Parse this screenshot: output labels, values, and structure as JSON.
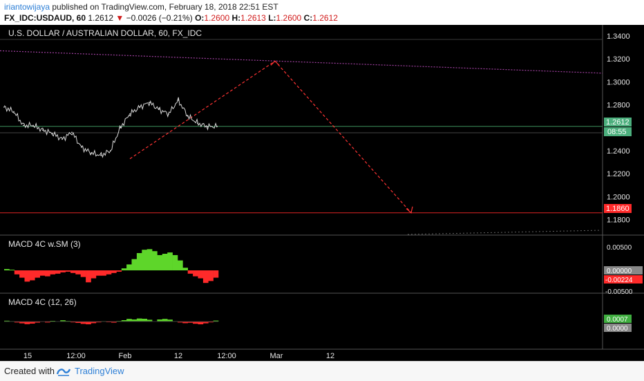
{
  "header": {
    "author": "iriantowijaya",
    "published_text": " published on TradingView.com, February 18, 2018 22:51 EST",
    "symbol": "FX_IDC:USDAUD, 60",
    "last": "1.2612",
    "change_arrow": "▼",
    "change": "−0.0026 (−0.21%)",
    "o_label": "O:",
    "o_val": "1.2600",
    "h_label": "H:",
    "h_val": "1.2613",
    "l_label": "L:",
    "l_val": "1.2600",
    "c_label": "C:",
    "c_val": "1.2612"
  },
  "footer": {
    "created_with": "Created with",
    "brand": "TradingView"
  },
  "colors": {
    "bg": "#000000",
    "price_line": "#d9d9d9",
    "trend": "#ff3333",
    "resistance": "#a040a0",
    "target_line": "#e02424",
    "macd_up": "#5ed62a",
    "macd_down": "#ff2a2a",
    "price_tag": "#4caf7d",
    "target_tag": "#ff2a2a"
  },
  "chart_data": [
    {
      "type": "line",
      "title": "U.S. DOLLAR / AUSTRALIAN DOLLAR, 60, FX_IDC",
      "y_ticks": [
        "1.3400",
        "1.3200",
        "1.3000",
        "1.2800",
        "1.2400",
        "1.2200",
        "1.2000",
        "1.1800"
      ],
      "ylim": [
        1.175,
        1.3435
      ],
      "x_ticks": [
        "15",
        "12:00",
        "Feb",
        "12",
        "12:00",
        "Mar",
        "12"
      ],
      "x": [
        "Jan 11",
        "Jan 13",
        "Jan 15",
        "Jan 17",
        "Jan 19",
        "Jan 21",
        "Jan 23",
        "Jan 25",
        "Jan 27",
        "Jan 29",
        "Jan 31",
        "Feb 2",
        "Feb 4",
        "Feb 6",
        "Feb 8",
        "Feb 10",
        "Feb 12",
        "Feb 13",
        "Feb 14",
        "Feb 15",
        "Feb 16",
        "Feb 17",
        "Feb 18"
      ],
      "close": [
        1.278,
        1.274,
        1.262,
        1.262,
        1.258,
        1.255,
        1.25,
        1.256,
        1.243,
        1.238,
        1.236,
        1.24,
        1.26,
        1.272,
        1.278,
        1.282,
        1.276,
        1.272,
        1.284,
        1.27,
        1.264,
        1.261,
        1.2612
      ],
      "last_price": "1.2612",
      "countdown": "08:55",
      "target": {
        "label": "1.1860",
        "value": 1.186
      },
      "resistance_line": [
        [
          1.327
        ],
        [
          1.3075
        ]
      ],
      "projection": [
        1.233,
        1.318,
        1.186
      ]
    },
    {
      "type": "bar",
      "title": "MACD 4C w.SM (3)",
      "y_ticks": [
        "0.00500",
        "0.00000",
        "-0.00500"
      ],
      "current_labels": [
        "0.00000",
        "-0.00224"
      ],
      "values": [
        0.0004,
        0.0002,
        -0.0012,
        -0.0022,
        -0.0034,
        -0.003,
        -0.0022,
        -0.0016,
        -0.0018,
        -0.0012,
        -0.001,
        -0.0006,
        -0.0004,
        -0.0008,
        -0.0012,
        -0.002,
        -0.0036,
        -0.0024,
        -0.0016,
        -0.0016,
        -0.0012,
        -0.0008,
        -0.0004,
        0.0006,
        0.0018,
        0.0034,
        0.0052,
        0.0062,
        0.0064,
        0.0058,
        0.0046,
        0.005,
        0.0054,
        0.0046,
        0.003,
        0.0008,
        -0.001,
        -0.0018,
        -0.0024,
        -0.0038,
        -0.0032,
        -0.0022
      ]
    },
    {
      "type": "bar",
      "title": "MACD 4C (12, 26)",
      "current_labels": [
        "0.0007",
        "0.0000"
      ],
      "values": [
        0.0012,
        0.0006,
        -0.0014,
        -0.0026,
        -0.0038,
        -0.003,
        -0.0016,
        -0.0006,
        -0.0014,
        0.001,
        -0.0004,
        0.0018,
        0.0008,
        -0.0012,
        -0.002,
        -0.0034,
        -0.004,
        -0.0024,
        -0.0012,
        0.0006,
        -0.001,
        -0.0016,
        0.0008,
        0.002,
        0.0038,
        0.003,
        0.0044,
        0.004,
        0.0026,
        -0.0004,
        0.003,
        0.0038,
        0.0028,
        0.0006,
        -0.0014,
        -0.0024,
        -0.0018,
        -0.0032,
        -0.004,
        -0.0026,
        -0.0012,
        0.0014
      ]
    }
  ]
}
